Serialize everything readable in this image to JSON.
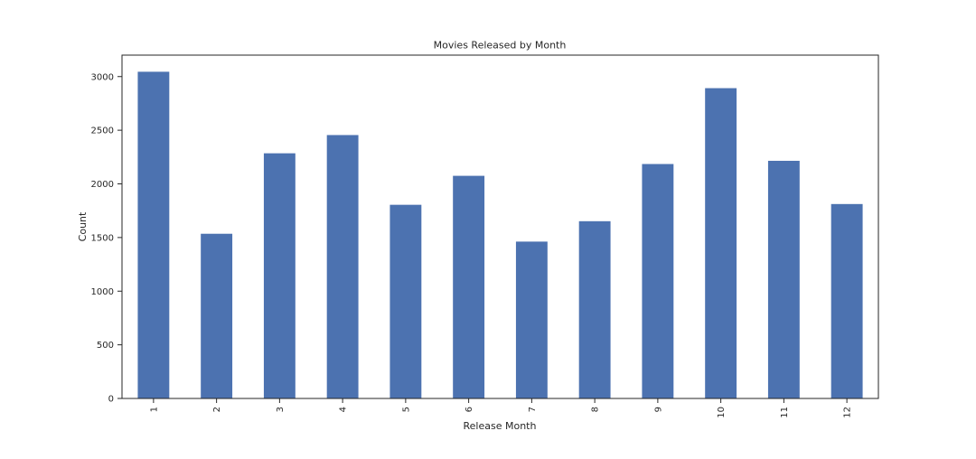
{
  "chart_data": {
    "type": "bar",
    "title": "Movies Released by Month",
    "xlabel": "Release Month",
    "ylabel": "Count",
    "categories": [
      "1",
      "2",
      "3",
      "4",
      "5",
      "6",
      "7",
      "8",
      "9",
      "10",
      "11",
      "12"
    ],
    "values": [
      3045,
      1535,
      2285,
      2455,
      1805,
      2075,
      1462,
      1652,
      2185,
      2892,
      2215,
      1812
    ],
    "ylim": [
      0,
      3200
    ],
    "yticks": [
      0,
      500,
      1000,
      1500,
      2000,
      2500,
      3000
    ],
    "ytick_labels": [
      "0",
      "500",
      "1000",
      "1500",
      "2000",
      "2500",
      "3000"
    ],
    "bar_color": "#4c72b0",
    "grid": false,
    "legend": false
  }
}
